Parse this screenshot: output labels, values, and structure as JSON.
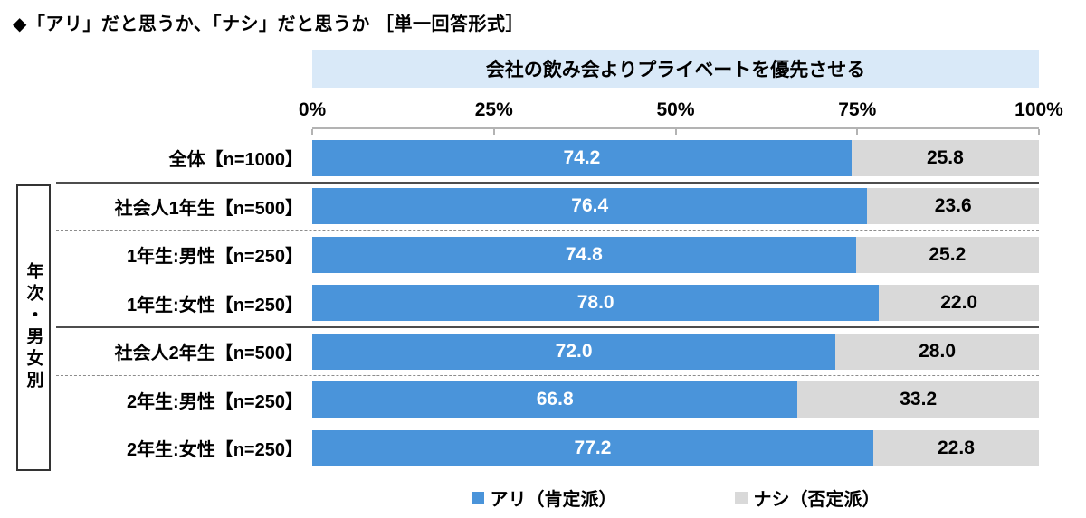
{
  "title": "◆「アリ」だと思うか、「ナシ」だと思うか ［単一回答形式］",
  "chart_data": {
    "type": "bar",
    "orientation": "horizontal",
    "stacked": true,
    "header": "会社の飲み会よりプライベートを優先させる",
    "axis_ticks": [
      "0%",
      "25%",
      "50%",
      "75%",
      "100%"
    ],
    "xlim": [
      0,
      100
    ],
    "grid": false,
    "legend_position": "bottom",
    "header_bg": "#d9e9f8",
    "categories": [
      "全体【n=1000】",
      "社会人1年生【n=500】",
      "1年生:男性【n=250】",
      "1年生:女性【n=250】",
      "社会人2年生【n=500】",
      "2年生:男性【n=250】",
      "2年生:女性【n=250】"
    ],
    "series": [
      {
        "name": "アリ（肯定派）",
        "color": "#4a94da",
        "values": [
          74.2,
          76.4,
          74.8,
          78.0,
          72.0,
          66.8,
          77.2
        ]
      },
      {
        "name": "ナシ（否定派）",
        "color": "#d9d9d9",
        "values": [
          25.8,
          23.6,
          25.2,
          22.0,
          28.0,
          33.2,
          22.8
        ]
      }
    ],
    "group_label": "年次・男女別",
    "group_rows": [
      1,
      6
    ],
    "separators": [
      {
        "after": 0,
        "style": "solid"
      },
      {
        "after": 1,
        "style": "dashed"
      },
      {
        "after": 3,
        "style": "solid"
      },
      {
        "after": 4,
        "style": "dashed"
      }
    ]
  }
}
